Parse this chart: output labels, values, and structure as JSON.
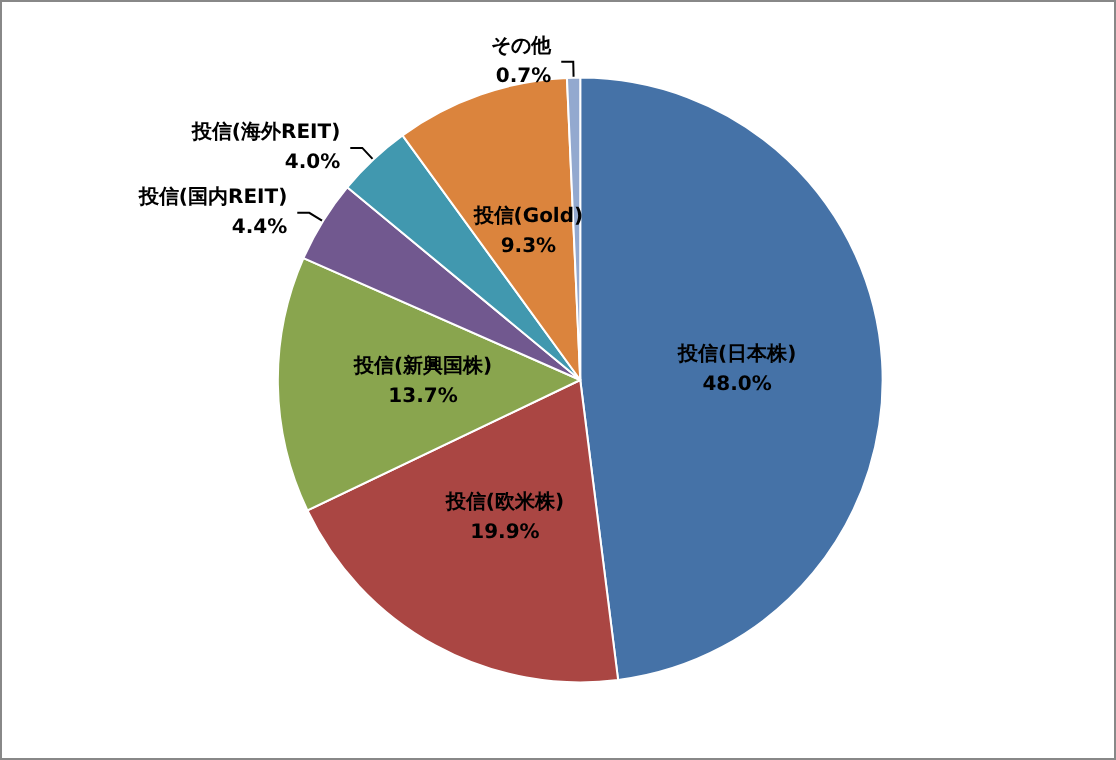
{
  "chart_data": {
    "type": "pie",
    "categories": [
      "投信(日本株)",
      "投信(欧米株)",
      "投信(新興国株)",
      "投信(国内REIT)",
      "投信(海外REIT)",
      "投信(Gold)",
      "その他"
    ],
    "values": [
      48.0,
      19.9,
      13.7,
      4.4,
      4.0,
      9.3,
      0.7
    ],
    "colors": [
      "#4572a7",
      "#aa4643",
      "#89a54e",
      "#71588f",
      "#4198af",
      "#db843d",
      "#93a9cf"
    ],
    "value_labels": [
      "48.0%",
      "19.9%",
      "13.7%",
      "4.4%",
      "4.0%",
      "9.3%",
      "0.7%"
    ],
    "legend": false
  }
}
